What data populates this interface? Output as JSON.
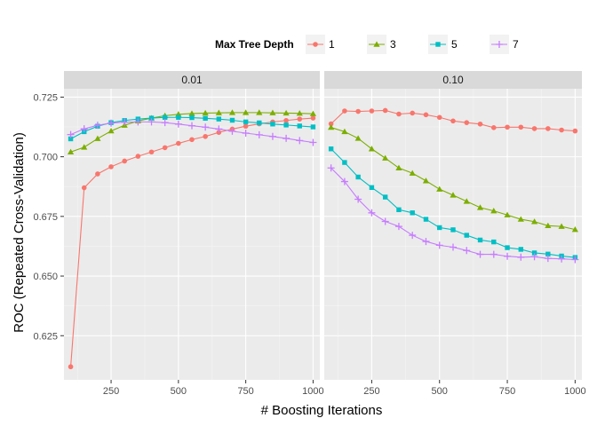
{
  "chart_data": {
    "type": "line",
    "xlabel": "# Boosting Iterations",
    "ylabel": "ROC (Repeated Cross-Validation)",
    "xlim": [
      75,
      1025
    ],
    "ylim": [
      0.6065,
      0.7285
    ],
    "x_ticks": [
      250,
      500,
      750,
      1000
    ],
    "y_ticks": [
      0.625,
      0.65,
      0.675,
      0.7,
      0.725
    ],
    "y_tick_labels": [
      "0.625",
      "0.650",
      "0.675",
      "0.700",
      "0.725"
    ],
    "grid": true,
    "legend": {
      "title": "Max Tree Depth",
      "placement": "top"
    },
    "x": [
      100,
      150,
      200,
      250,
      300,
      350,
      400,
      450,
      500,
      550,
      600,
      650,
      700,
      750,
      800,
      850,
      900,
      950,
      1000
    ],
    "series_meta": [
      {
        "name": "1",
        "color": "#F8766D",
        "marker": "circle"
      },
      {
        "name": "3",
        "color": "#7CAE00",
        "marker": "triangle"
      },
      {
        "name": "5",
        "color": "#00BFC4",
        "marker": "square"
      },
      {
        "name": "7",
        "color": "#C77CFF",
        "marker": "plus"
      }
    ],
    "panels": [
      {
        "label": "0.01",
        "series": [
          {
            "name": "1",
            "values": [
              0.612,
              0.687,
              0.6928,
              0.6958,
              0.6982,
              0.7002,
              0.702,
              0.7038,
              0.7056,
              0.7072,
              0.7085,
              0.7102,
              0.7116,
              0.7128,
              0.7138,
              0.7146,
              0.7152,
              0.7158,
              0.7162
            ]
          },
          {
            "name": "3",
            "values": [
              0.702,
              0.704,
              0.7076,
              0.7108,
              0.7132,
              0.715,
              0.7162,
              0.7172,
              0.7178,
              0.7181,
              0.7183,
              0.7184,
              0.7185,
              0.7185,
              0.7185,
              0.7184,
              0.7183,
              0.7182,
              0.718
            ]
          },
          {
            "name": "5",
            "values": [
              0.7075,
              0.7105,
              0.7128,
              0.7143,
              0.7152,
              0.7158,
              0.7162,
              0.7165,
              0.7165,
              0.7164,
              0.7161,
              0.7158,
              0.7153,
              0.7146,
              0.7142,
              0.7137,
              0.7133,
              0.7129,
              0.7125
            ]
          },
          {
            "name": "7",
            "values": [
              0.7093,
              0.7117,
              0.7132,
              0.7141,
              0.7145,
              0.7146,
              0.7146,
              0.7143,
              0.7137,
              0.713,
              0.7124,
              0.7116,
              0.7107,
              0.7099,
              0.7092,
              0.7085,
              0.7077,
              0.7068,
              0.706
            ]
          }
        ]
      },
      {
        "label": "0.10",
        "series": [
          {
            "name": "1",
            "values": [
              0.7138,
              0.7192,
              0.719,
              0.7192,
              0.7194,
              0.7179,
              0.7183,
              0.7176,
              0.7165,
              0.715,
              0.7143,
              0.7137,
              0.7122,
              0.7124,
              0.7124,
              0.7118,
              0.7118,
              0.7112,
              0.7108
            ]
          },
          {
            "name": "3",
            "values": [
              0.7123,
              0.7105,
              0.7077,
              0.7033,
              0.6994,
              0.6953,
              0.6931,
              0.6899,
              0.6864,
              0.6839,
              0.6813,
              0.6787,
              0.6773,
              0.6756,
              0.6738,
              0.6728,
              0.6711,
              0.6708,
              0.6695
            ]
          },
          {
            "name": "5",
            "values": [
              0.7033,
              0.6976,
              0.6915,
              0.6871,
              0.6831,
              0.6778,
              0.6765,
              0.6738,
              0.6703,
              0.6694,
              0.6671,
              0.6651,
              0.6643,
              0.6619,
              0.6612,
              0.6597,
              0.6592,
              0.6584,
              0.6578
            ]
          },
          {
            "name": "7",
            "values": [
              0.6953,
              0.6896,
              0.6822,
              0.6765,
              0.6729,
              0.6708,
              0.6671,
              0.6645,
              0.6629,
              0.6621,
              0.6607,
              0.6591,
              0.6591,
              0.6583,
              0.6579,
              0.6581,
              0.6574,
              0.6572,
              0.6569
            ]
          }
        ]
      }
    ]
  }
}
